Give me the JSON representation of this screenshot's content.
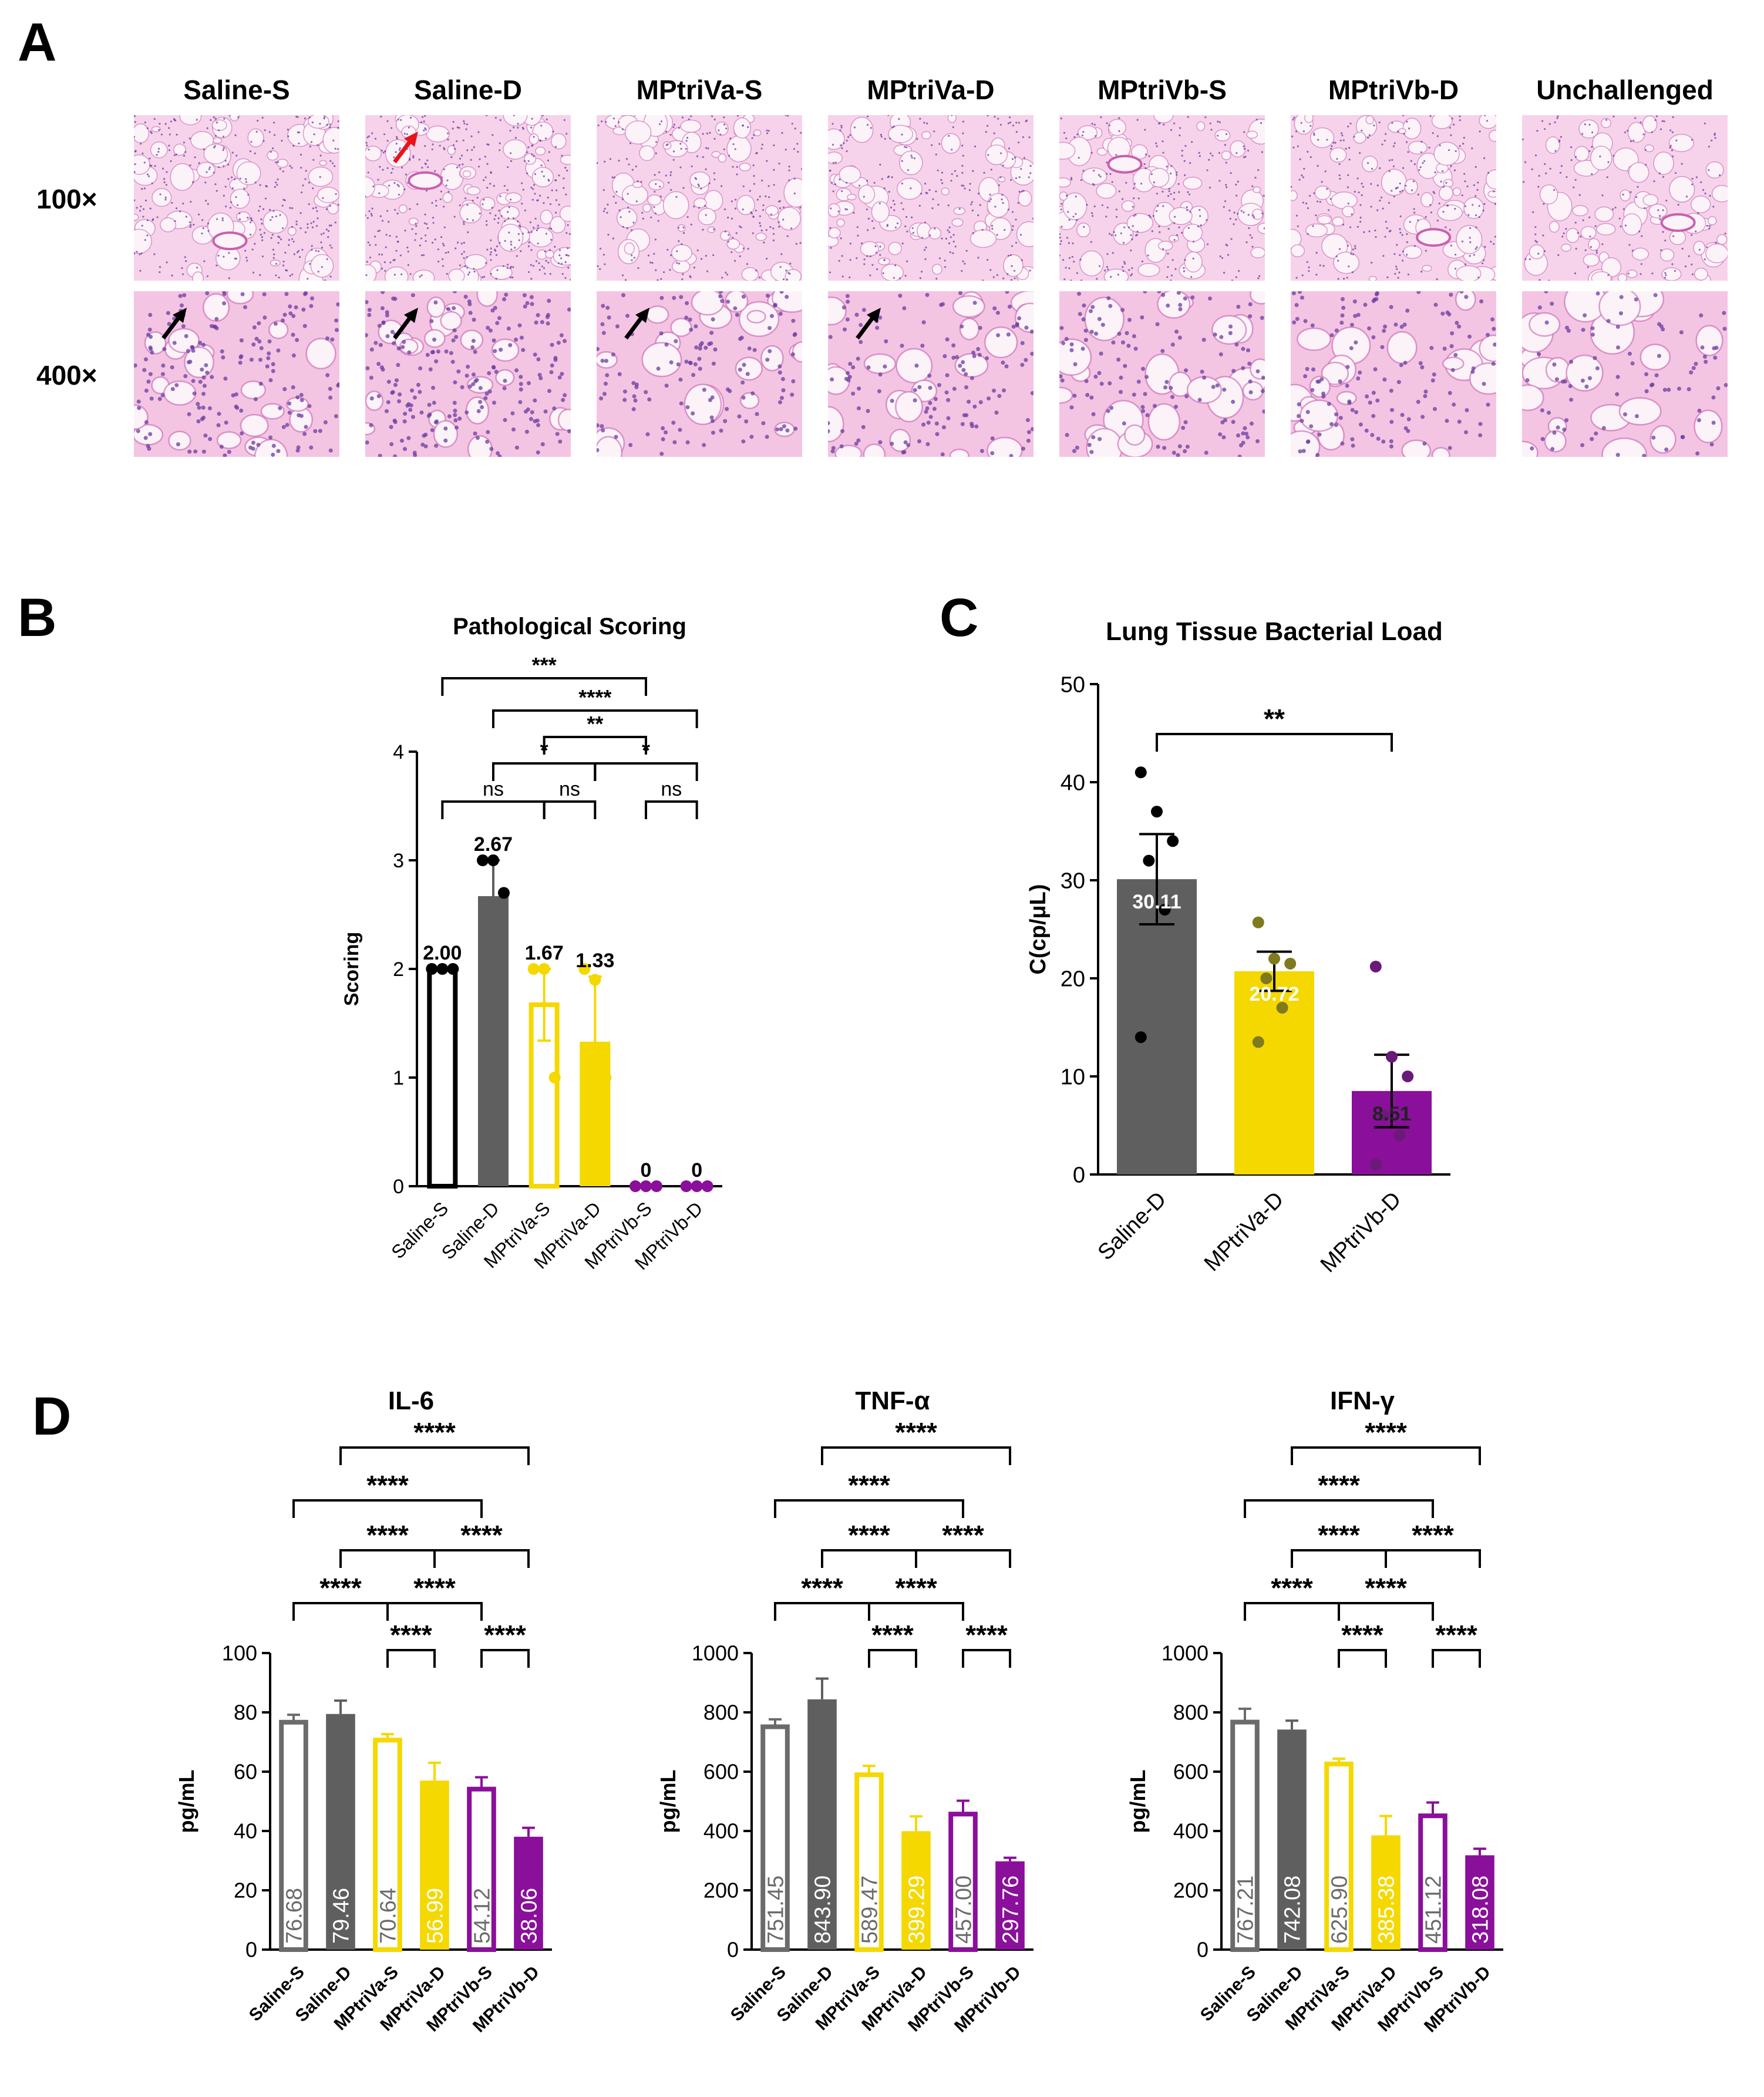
{
  "panelA": {
    "letter": "A",
    "columns": [
      "Saline-S",
      "Saline-D",
      "MPtriVa-S",
      "MPtriVa-D",
      "MPtriVb-S",
      "MPtriVb-D",
      "Unchallenged"
    ],
    "rows": [
      "100×",
      "400×"
    ],
    "tile_icon": "histology-image-icon",
    "arrows": [
      {
        "row": 1,
        "col": 1,
        "color": "#e8141b"
      },
      {
        "row": 2,
        "col": 0,
        "color": "#000000"
      },
      {
        "row": 2,
        "col": 1,
        "color": "#000000"
      },
      {
        "row": 2,
        "col": 2,
        "color": "#000000"
      },
      {
        "row": 2,
        "col": 3,
        "color": "#000000"
      }
    ],
    "colors": {
      "tissue_pink": "#f2b8dc",
      "tissue_dark": "#c95fb0",
      "nuclei": "#6a3da0"
    }
  },
  "colors": {
    "white_fill": "#ffffff",
    "gray": "#5f5f5f",
    "yellow": "#f5d800",
    "purple": "#8a0f9a",
    "black": "#000000"
  },
  "chart_data": [
    {
      "panel": "B",
      "type": "bar",
      "title": "Pathological Scoring",
      "ylabel": "Scoring",
      "xlabel": "",
      "ylim": [
        0,
        4
      ],
      "yticks": [
        0,
        1,
        2,
        3,
        4
      ],
      "categories": [
        "Saline-S",
        "Saline-D",
        "MPtriVa-S",
        "MPtriVa-D",
        "MPtriVb-S",
        "MPtriVb-D"
      ],
      "values": [
        2.0,
        2.67,
        1.67,
        1.33,
        0,
        0
      ],
      "value_labels": [
        "2.00",
        "2.67",
        "1.67",
        "1.33",
        "0",
        "0"
      ],
      "errors": [
        0,
        0.33,
        0.33,
        0.6,
        0,
        0
      ],
      "fill": [
        "hollow",
        "solid",
        "hollow",
        "solid",
        "solid",
        "solid"
      ],
      "colors": [
        "#000000",
        "#5f5f5f",
        "#f5d800",
        "#f5d800",
        "#8a0f9a",
        "#8a0f9a"
      ],
      "points": [
        [
          2,
          2,
          2
        ],
        [
          3,
          3,
          2.7
        ],
        [
          2,
          2,
          1.0
        ],
        [
          2,
          1.9,
          1.0
        ],
        [
          0,
          0,
          0
        ],
        [
          0,
          0,
          0
        ]
      ],
      "comparisons": [
        {
          "a": 0,
          "b": 4,
          "label": "***"
        },
        {
          "a": 1,
          "b": 5,
          "label": "****"
        },
        {
          "a": 2,
          "b": 4,
          "label": "**"
        },
        {
          "a": 1,
          "b": 3,
          "label": "*"
        },
        {
          "a": 3,
          "b": 5,
          "label": "*"
        },
        {
          "a": 0,
          "b": 2,
          "label": "ns"
        },
        {
          "a": 2,
          "b": 3,
          "label": "ns"
        },
        {
          "a": 4,
          "b": 5,
          "label": "ns"
        }
      ]
    },
    {
      "panel": "C",
      "type": "bar",
      "title": "Lung Tissue Bacterial Load",
      "ylabel": "C(cp/μL)",
      "xlabel": "",
      "ylim": [
        0,
        50
      ],
      "yticks": [
        0,
        10,
        20,
        30,
        40,
        50
      ],
      "categories": [
        "Saline-D",
        "MPtriVa-D",
        "MPtriVb-D"
      ],
      "values": [
        30.11,
        20.72,
        8.51
      ],
      "value_labels": [
        "30.11",
        "20.72",
        "8.51"
      ],
      "errors": [
        4.6,
        2.0,
        3.7
      ],
      "colors": [
        "#5f5f5f",
        "#f5d800",
        "#8a0f9a"
      ],
      "point_colors": [
        "#000000",
        "#7f7a1e",
        "#6a1a78"
      ],
      "points": [
        [
          41,
          37,
          34,
          32,
          27,
          14
        ],
        [
          25.7,
          22,
          21.5,
          20,
          17,
          13.5
        ],
        [
          21.2,
          12,
          10,
          6,
          4,
          1
        ]
      ],
      "comparisons": [
        {
          "a": 0,
          "b": 2,
          "label": "**"
        }
      ]
    },
    {
      "panel": "D",
      "type": "bar",
      "title": "IL-6",
      "ylabel": "pg/mL",
      "xlabel": "",
      "ylim": [
        0,
        100
      ],
      "yticks": [
        0,
        20,
        40,
        60,
        80,
        100
      ],
      "categories": [
        "Saline-S",
        "Saline-D",
        "MPtriVa-S",
        "MPtriVa-D",
        "MPtriVb-S",
        "MPtriVb-D"
      ],
      "values": [
        76.68,
        79.46,
        70.64,
        56.99,
        54.12,
        38.06
      ],
      "value_labels": [
        "76.68",
        "79.46",
        "70.64",
        "56.99",
        "54.12",
        "38.06"
      ],
      "errors": [
        2.5,
        4.5,
        2.0,
        6.0,
        4.0,
        3.0
      ],
      "fill": [
        "hollow",
        "solid",
        "hollow",
        "solid",
        "hollow",
        "solid"
      ],
      "colors": [
        "#6b6b6b",
        "#5f5f5f",
        "#f5d800",
        "#f5d800",
        "#8a0f9a",
        "#8a0f9a"
      ],
      "comparisons": [
        {
          "a": 1,
          "b": 5,
          "label": "****"
        },
        {
          "a": 0,
          "b": 4,
          "label": "****"
        },
        {
          "a": 1,
          "b": 3,
          "label": "****"
        },
        {
          "a": 3,
          "b": 5,
          "label": "****"
        },
        {
          "a": 0,
          "b": 2,
          "label": "****"
        },
        {
          "a": 2,
          "b": 4,
          "label": "****"
        },
        {
          "a": 2,
          "b": 3,
          "label": "****"
        },
        {
          "a": 4,
          "b": 5,
          "label": "****"
        }
      ]
    },
    {
      "panel": "D",
      "type": "bar",
      "title": "TNF-α",
      "ylabel": "pg/mL",
      "xlabel": "",
      "ylim": [
        0,
        1000
      ],
      "yticks": [
        0,
        200,
        400,
        600,
        800,
        1000
      ],
      "categories": [
        "Saline-S",
        "Saline-D",
        "MPtriVa-S",
        "MPtriVa-D",
        "MPtriVb-S",
        "MPtriVb-D"
      ],
      "values": [
        751.45,
        843.9,
        589.47,
        399.29,
        457.0,
        297.76
      ],
      "value_labels": [
        "751.45",
        "843.90",
        "589.47",
        "399.29",
        "457.00",
        "297.76"
      ],
      "errors": [
        25,
        70,
        30,
        50,
        45,
        12
      ],
      "fill": [
        "hollow",
        "solid",
        "hollow",
        "solid",
        "hollow",
        "solid"
      ],
      "colors": [
        "#6b6b6b",
        "#5f5f5f",
        "#f5d800",
        "#f5d800",
        "#8a0f9a",
        "#8a0f9a"
      ],
      "comparisons": [
        {
          "a": 1,
          "b": 5,
          "label": "****"
        },
        {
          "a": 0,
          "b": 4,
          "label": "****"
        },
        {
          "a": 1,
          "b": 3,
          "label": "****"
        },
        {
          "a": 3,
          "b": 5,
          "label": "****"
        },
        {
          "a": 0,
          "b": 2,
          "label": "****"
        },
        {
          "a": 2,
          "b": 4,
          "label": "****"
        },
        {
          "a": 2,
          "b": 3,
          "label": "****"
        },
        {
          "a": 4,
          "b": 5,
          "label": "****"
        }
      ]
    },
    {
      "panel": "D",
      "type": "bar",
      "title": "IFN-γ",
      "ylabel": "pg/mL",
      "xlabel": "",
      "ylim": [
        0,
        1000
      ],
      "yticks": [
        0,
        200,
        400,
        600,
        800,
        1000
      ],
      "categories": [
        "Saline-S",
        "Saline-D",
        "MPtriVa-S",
        "MPtriVa-D",
        "MPtriVb-S",
        "MPtriVb-D"
      ],
      "values": [
        767.21,
        742.08,
        625.9,
        385.38,
        451.12,
        318.08
      ],
      "value_labels": [
        "767.21",
        "742.08",
        "625.90",
        "385.38",
        "451.12",
        "318.08"
      ],
      "errors": [
        45,
        30,
        18,
        65,
        45,
        22
      ],
      "fill": [
        "hollow",
        "solid",
        "hollow",
        "solid",
        "hollow",
        "solid"
      ],
      "colors": [
        "#6b6b6b",
        "#5f5f5f",
        "#f5d800",
        "#f5d800",
        "#8a0f9a",
        "#8a0f9a"
      ],
      "comparisons": [
        {
          "a": 1,
          "b": 5,
          "label": "****"
        },
        {
          "a": 0,
          "b": 4,
          "label": "****"
        },
        {
          "a": 1,
          "b": 3,
          "label": "****"
        },
        {
          "a": 3,
          "b": 5,
          "label": "****"
        },
        {
          "a": 0,
          "b": 2,
          "label": "****"
        },
        {
          "a": 2,
          "b": 4,
          "label": "****"
        },
        {
          "a": 2,
          "b": 3,
          "label": "****"
        },
        {
          "a": 4,
          "b": 5,
          "label": "****"
        }
      ]
    }
  ],
  "labels": {
    "B": "B",
    "C": "C",
    "D": "D"
  }
}
